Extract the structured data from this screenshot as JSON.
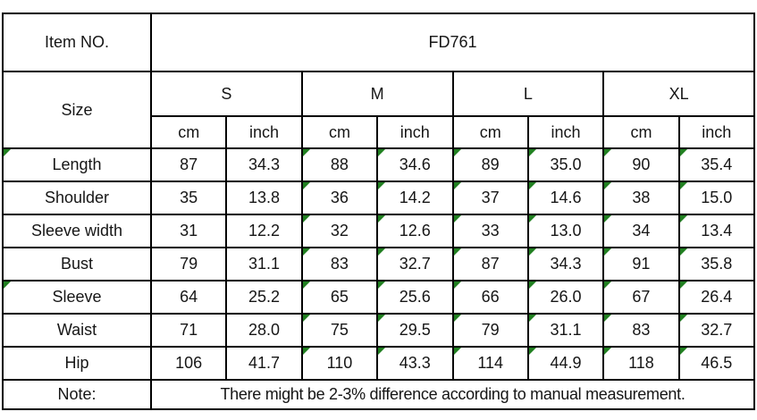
{
  "chart_data": {
    "type": "table",
    "title": "FD761 garment size chart",
    "columns": [
      "Size",
      "S cm",
      "S inch",
      "M cm",
      "M inch",
      "L cm",
      "L inch",
      "XL cm",
      "XL inch"
    ],
    "rows": [
      [
        "Length",
        87,
        34.3,
        88,
        34.6,
        89,
        35.0,
        90,
        35.4
      ],
      [
        "Shoulder",
        35,
        13.8,
        36,
        14.2,
        37,
        14.6,
        38,
        15.0
      ],
      [
        "Sleeve width",
        31,
        12.2,
        32,
        12.6,
        33,
        13.0,
        34,
        13.4
      ],
      [
        "Bust",
        79,
        31.1,
        83,
        32.7,
        87,
        34.3,
        91,
        35.8
      ],
      [
        "Sleeve",
        64,
        25.2,
        65,
        25.6,
        66,
        26.0,
        67,
        26.4
      ],
      [
        "Waist",
        71,
        28.0,
        75,
        29.5,
        79,
        31.1,
        83,
        32.7
      ],
      [
        "Hip",
        106,
        41.7,
        110,
        43.3,
        114,
        44.9,
        118,
        46.5
      ]
    ],
    "note": "There might be 2-3% difference according to manual measurement."
  },
  "table": {
    "item_no_label": "Item NO.",
    "item_no_value": "FD761",
    "size_label": "Size",
    "sizes": [
      "S",
      "M",
      "L",
      "XL"
    ],
    "unit_labels": [
      "cm",
      "inch",
      "cm",
      "inch",
      "cm",
      "inch",
      "cm",
      "inch"
    ],
    "rows": [
      {
        "label": "Length",
        "has_indicator": true,
        "values": [
          "87",
          "34.3",
          "88",
          "34.6",
          "89",
          "35.0",
          "90",
          "35.4"
        ]
      },
      {
        "label": "Shoulder",
        "has_indicator": false,
        "values": [
          "35",
          "13.8",
          "36",
          "14.2",
          "37",
          "14.6",
          "38",
          "15.0"
        ]
      },
      {
        "label": "Sleeve width",
        "has_indicator": false,
        "values": [
          "31",
          "12.2",
          "32",
          "12.6",
          "33",
          "13.0",
          "34",
          "13.4"
        ]
      },
      {
        "label": "Bust",
        "has_indicator": false,
        "values": [
          "79",
          "31.1",
          "83",
          "32.7",
          "87",
          "34.3",
          "91",
          "35.8"
        ]
      },
      {
        "label": "Sleeve",
        "has_indicator": true,
        "values": [
          "64",
          "25.2",
          "65",
          "25.6",
          "66",
          "26.0",
          "67",
          "26.4"
        ]
      },
      {
        "label": "Waist",
        "has_indicator": false,
        "values": [
          "71",
          "28.0",
          "75",
          "29.5",
          "79",
          "31.1",
          "83",
          "32.7"
        ]
      },
      {
        "label": "Hip",
        "has_indicator": false,
        "values": [
          "106",
          "41.7",
          "110",
          "43.3",
          "114",
          "44.9",
          "118",
          "46.5"
        ]
      }
    ],
    "note_label": "Note:",
    "note_text": "There might be 2-3% difference according to manual measurement."
  },
  "colors": {
    "header_bg": "#C5D9F1",
    "alt_bg": "#EFEFEF",
    "border": "#000000",
    "indicator_green": "#218021",
    "text": "#161616",
    "page_bg": "#FFFFFF"
  }
}
